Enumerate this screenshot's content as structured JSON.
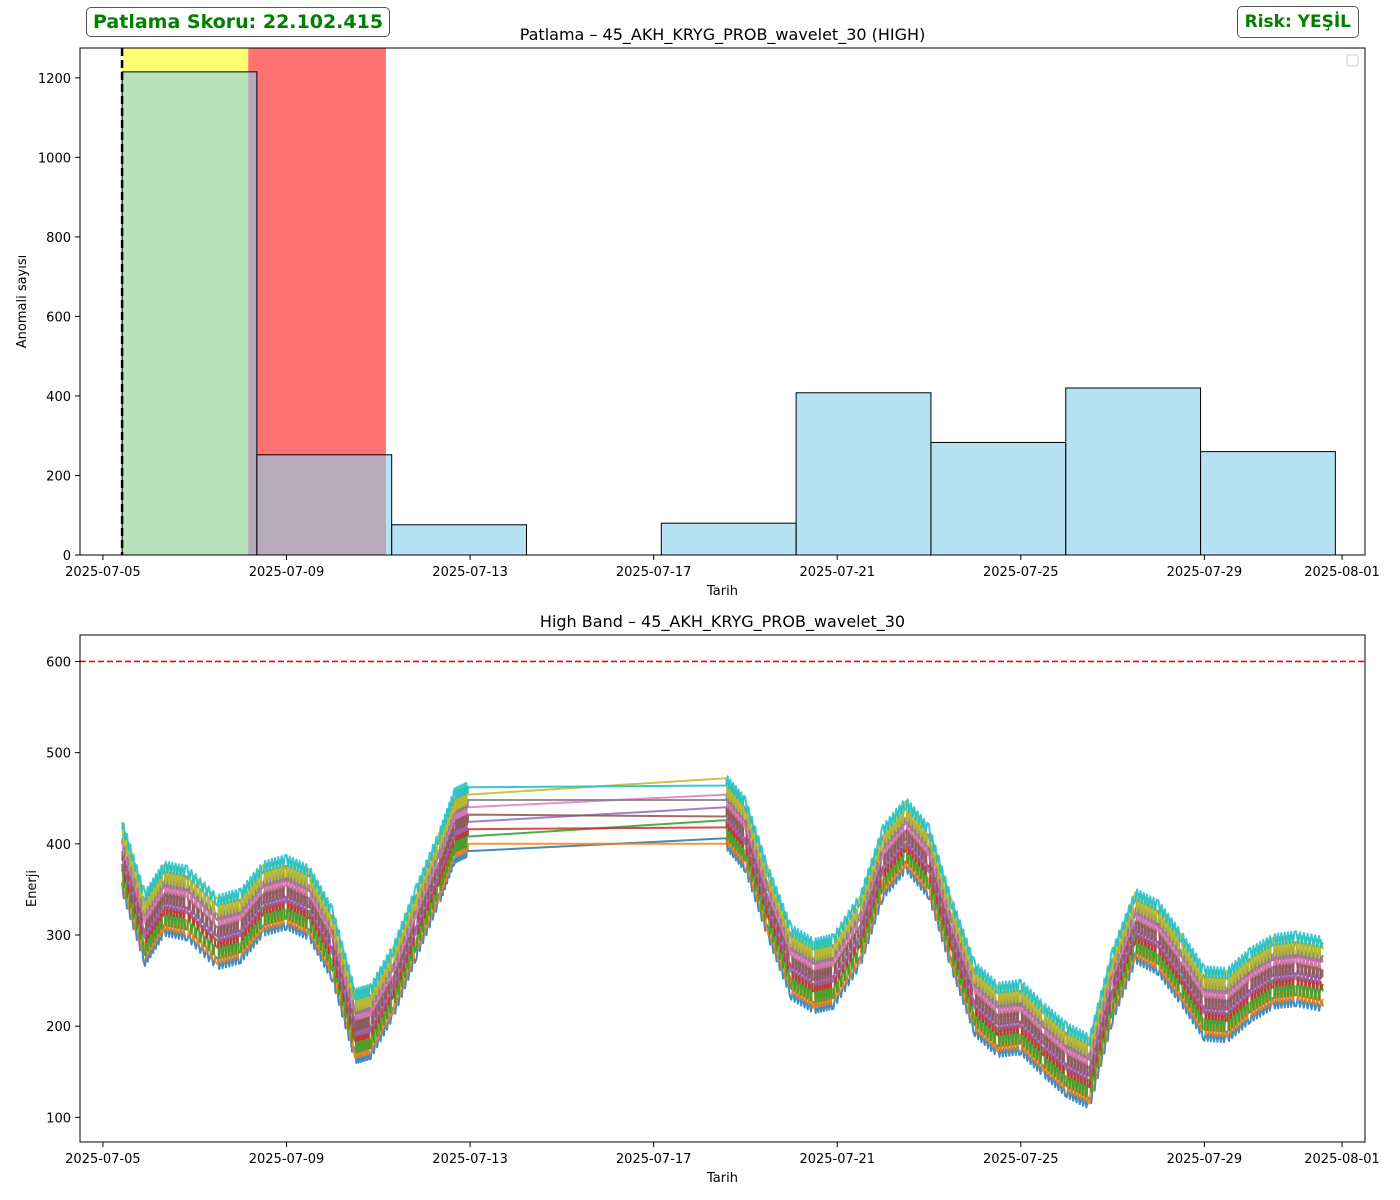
{
  "header": {
    "score_text": "Patlama Skoru: 22.102.415",
    "risk_text": "Risk: YEŞİL"
  },
  "chart_data": [
    {
      "type": "bar",
      "title": "Patlama – 45_AKH_KRYG_PROB_wavelet_30 (HIGH)",
      "xlabel": "Tarih",
      "ylabel": "Anomali sayısı",
      "x_ticks": [
        "2025-07-05",
        "2025-07-09",
        "2025-07-13",
        "2025-07-17",
        "2025-07-21",
        "2025-07-25",
        "2025-07-29",
        "2025-08-01"
      ],
      "y_ticks": [
        0,
        200,
        400,
        600,
        800,
        1000,
        1200
      ],
      "ylim": [
        0,
        1275
      ],
      "xlim": [
        "2025-07-04T12:00",
        "2025-08-01T12:00"
      ],
      "bins": [
        {
          "start": "2025-07-05T10:00",
          "end": "2025-07-08T08:30",
          "value": 1215
        },
        {
          "start": "2025-07-08T08:30",
          "end": "2025-07-11T07:00",
          "value": 252
        },
        {
          "start": "2025-07-11T07:00",
          "end": "2025-07-14T05:30",
          "value": 76
        },
        {
          "start": "2025-07-14T05:30",
          "end": "2025-07-17T04:00",
          "value": 0
        },
        {
          "start": "2025-07-17T04:00",
          "end": "2025-07-20T02:30",
          "value": 80
        },
        {
          "start": "2025-07-20T02:30",
          "end": "2025-07-23T01:00",
          "value": 408
        },
        {
          "start": "2025-07-23T01:00",
          "end": "2025-07-25T23:30",
          "value": 283
        },
        {
          "start": "2025-07-25T23:30",
          "end": "2025-07-28T22:00",
          "value": 420
        },
        {
          "start": "2025-07-28T22:00",
          "end": "2025-07-31T20:30",
          "value": 260
        }
      ],
      "bar_color": "#87CEEB",
      "spans": [
        {
          "start": "2025-07-05T10:00",
          "end": "2025-07-08T04:00",
          "color": "#FFFF00"
        },
        {
          "start": "2025-07-08T04:00",
          "end": "2025-07-11T04:00",
          "color": "#FF0000"
        }
      ],
      "vline": {
        "x": "2025-07-05T10:00",
        "color": "#000000",
        "style": "dashed"
      },
      "legend": "top-right, empty"
    },
    {
      "type": "line",
      "title": "High Band – 45_AKH_KRYG_PROB_wavelet_30",
      "xlabel": "Tarih",
      "ylabel": "Enerji",
      "x_ticks": [
        "2025-07-05",
        "2025-07-09",
        "2025-07-13",
        "2025-07-17",
        "2025-07-21",
        "2025-07-25",
        "2025-07-29",
        "2025-08-01"
      ],
      "y_ticks": [
        100,
        200,
        300,
        400,
        500,
        600
      ],
      "ylim": [
        73,
        629
      ],
      "xlim": [
        "2025-07-04T12:00",
        "2025-08-01T12:00"
      ],
      "threshold": {
        "y": 600,
        "color": "#FF0000",
        "style": "dashed"
      },
      "series_count": 10,
      "series_colors": [
        "#1f77b4",
        "#ff7f0e",
        "#2ca02c",
        "#d62728",
        "#9467bd",
        "#8c564b",
        "#e377c2",
        "#7f7f7f",
        "#bcbd22",
        "#17becf"
      ],
      "series_offsets": [
        0,
        8,
        16,
        24,
        32,
        40,
        48,
        56,
        62,
        70
      ],
      "segments": [
        {
          "x": [
            "2025-07-05T10:00",
            "2025-07-05T22:00",
            "2025-07-06T08:00",
            "2025-07-06T20:00",
            "2025-07-07T12:00",
            "2025-07-08T00:00",
            "2025-07-08T12:00",
            "2025-07-09T00:00",
            "2025-07-09T12:00",
            "2025-07-10T00:00",
            "2025-07-10T12:00",
            "2025-07-10T20:00",
            "2025-07-11T08:00",
            "2025-07-11T20:00",
            "2025-07-12T08:00",
            "2025-07-12T16:00",
            "2025-07-12T23:00"
          ],
          "base": [
            352,
            272,
            305,
            300,
            268,
            275,
            305,
            312,
            300,
            255,
            165,
            170,
            215,
            280,
            340,
            385,
            392
          ]
        },
        {
          "x": [
            "2025-07-18T14:00",
            "2025-07-19T00:00",
            "2025-07-19T12:00",
            "2025-07-20T00:00",
            "2025-07-20T12:00",
            "2025-07-20T22:00",
            "2025-07-21T12:00",
            "2025-07-22T00:00",
            "2025-07-22T12:00",
            "2025-07-23T00:00",
            "2025-07-23T12:00",
            "2025-07-24T00:00",
            "2025-07-24T12:00",
            "2025-07-25T00:00",
            "2025-07-25T12:00",
            "2025-07-26T00:00",
            "2025-07-26T12:00",
            "2025-07-27T00:00",
            "2025-07-27T12:00",
            "2025-07-28T00:00",
            "2025-07-28T12:00",
            "2025-07-29T00:00",
            "2025-07-29T12:00",
            "2025-07-30T00:00",
            "2025-07-30T12:00",
            "2025-07-31T00:00",
            "2025-07-31T14:00"
          ],
          "base": [
            400,
            375,
            300,
            235,
            220,
            225,
            270,
            345,
            375,
            345,
            265,
            195,
            172,
            175,
            150,
            128,
            115,
            210,
            275,
            262,
            228,
            190,
            188,
            210,
            225,
            228,
            222
          ]
        }
      ]
    }
  ]
}
